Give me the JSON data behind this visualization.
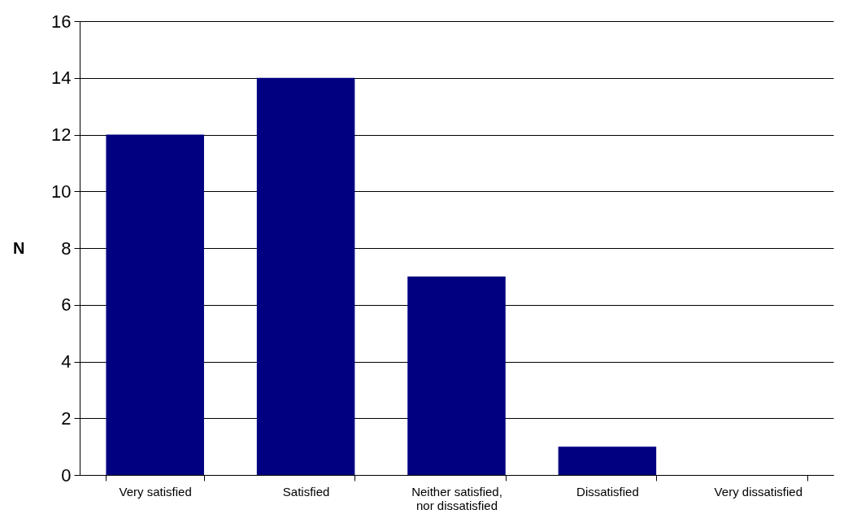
{
  "chart_data": {
    "type": "bar",
    "ylabel": "N",
    "categories": [
      "Very satisfied",
      "Satisfied",
      "Neither satisfied, nor dissatisfied",
      "Dissatisfied",
      "Very dissatisfied"
    ],
    "values": [
      12,
      14,
      7,
      1,
      0
    ],
    "color": "#000080",
    "ylim": [
      0,
      16
    ],
    "yticks": [
      0,
      2,
      4,
      6,
      8,
      10,
      12,
      14,
      16
    ],
    "grid": true
  }
}
